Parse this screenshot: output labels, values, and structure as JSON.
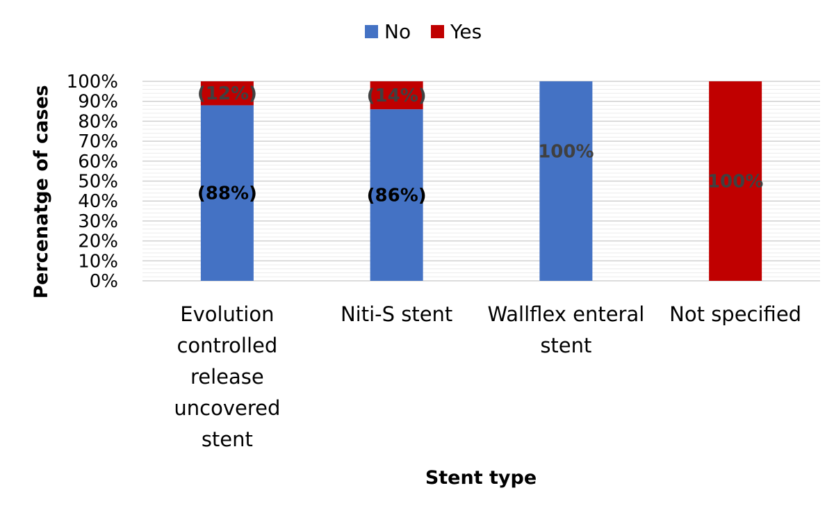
{
  "chart_data": {
    "type": "bar",
    "stacked": true,
    "title": "",
    "xlabel": "Stent type",
    "ylabel": "Percenatge of cases",
    "ylim": [
      0,
      100
    ],
    "y_ticks": [
      "0%",
      "10%",
      "20%",
      "30%",
      "40%",
      "50%",
      "60%",
      "70%",
      "80%",
      "90%",
      "100%"
    ],
    "grid": true,
    "legend_position": "top",
    "categories": [
      "Evolution controlled release uncovered stent",
      "Niti-S stent",
      "Wallflex enteral stent",
      "Not specified"
    ],
    "category_lines": [
      [
        "Evolution",
        "controlled",
        "release",
        "uncovered",
        "stent"
      ],
      [
        "Niti-S stent"
      ],
      [
        "Wallflex enteral",
        "stent"
      ],
      [
        "Not specified"
      ]
    ],
    "series": [
      {
        "name": "No",
        "color": "#4472C4",
        "values": [
          88,
          86,
          100,
          0
        ],
        "labels": [
          "(88%)",
          "(86%)",
          "100%",
          ""
        ],
        "label_colors": [
          "#000000",
          "#000000",
          "#404040",
          "#404040"
        ]
      },
      {
        "name": "Yes",
        "color": "#C00000",
        "values": [
          12,
          14,
          0,
          100
        ],
        "labels": [
          "(12%)",
          "(14%)",
          "",
          "100%"
        ],
        "label_colors": [
          "#404040",
          "#404040",
          "#404040",
          "#404040"
        ]
      }
    ]
  }
}
